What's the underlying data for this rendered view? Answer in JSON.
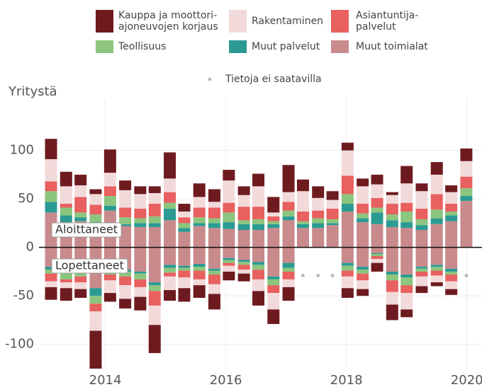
{
  "chart_data": {
    "type": "bar",
    "stacked": true,
    "y_label": "Yritystä",
    "stack_labels": [
      "Aloittaneet",
      "Lopettaneet"
    ],
    "missing_label": "Tietoja ei saatavilla",
    "missing_marker_value": -29,
    "xlim": [
      2012.9,
      2020.25
    ],
    "xticks": [
      2014,
      2016,
      2018,
      2020
    ],
    "ylim": [
      -125,
      153
    ],
    "yticks": [
      -100,
      -50,
      0,
      50,
      100
    ],
    "grid": true,
    "x": [
      2013.1,
      2013.35,
      2013.59,
      2013.84,
      2014.08,
      2014.33,
      2014.58,
      2014.82,
      2015.07,
      2015.31,
      2015.56,
      2015.81,
      2016.05,
      2016.3,
      2016.54,
      2016.79,
      2017.04,
      2017.28,
      2017.53,
      2017.77,
      2018.02,
      2018.27,
      2018.51,
      2018.76,
      2019.0,
      2019.25,
      2019.5,
      2019.74,
      2019.99
    ],
    "series": [
      {
        "name": "Muut toimialat",
        "color": "#c98a8c",
        "values": [
          36,
          26,
          27,
          22,
          38,
          22,
          21,
          21,
          28,
          16,
          22,
          20,
          19,
          18,
          18,
          20,
          28,
          20,
          20,
          23,
          37,
          26,
          24,
          21,
          20,
          18,
          24,
          27,
          48
        ],
        "values_below": [
          -20,
          -24,
          -22,
          -42,
          -22,
          -23,
          -25,
          -36,
          -18,
          -19,
          -17,
          -22,
          -11,
          -13,
          -15,
          -30,
          -16,
          null,
          null,
          null,
          -16,
          -20,
          -6,
          -25,
          -28,
          -20,
          -18,
          -22,
          null
        ]
      },
      {
        "name": "Muut palvelut",
        "color": "#2b9a93",
        "values": [
          11,
          7,
          4,
          4,
          5,
          2,
          4,
          4,
          12,
          4,
          3,
          5,
          7,
          6,
          6,
          4,
          4,
          4,
          5,
          2,
          8,
          4,
          12,
          7,
          6,
          5,
          6,
          6,
          5
        ],
        "values_below": [
          -3,
          -3,
          -3,
          -8,
          -3,
          -2,
          -2,
          -3,
          -3,
          -2,
          -3,
          -2,
          -2,
          -2,
          -3,
          -3,
          -5,
          null,
          null,
          null,
          -3,
          -3,
          -1,
          -3,
          -3,
          -2,
          -2,
          -3,
          null
        ]
      },
      {
        "name": "Teollisuus",
        "color": "#8cc57d",
        "values": [
          11,
          8,
          5,
          8,
          10,
          7,
          5,
          7,
          6,
          5,
          6,
          5,
          10,
          4,
          5,
          3,
          6,
          3,
          5,
          4,
          10,
          5,
          5,
          6,
          11,
          6,
          9,
          4,
          8
        ],
        "values_below": [
          -4,
          -6,
          -5,
          -8,
          -3,
          -5,
          -6,
          -6,
          -5,
          -3,
          -4,
          -4,
          -3,
          -3,
          -5,
          -6,
          -4,
          null,
          null,
          null,
          -5,
          -4,
          -2,
          -6,
          -8,
          -3,
          -4,
          -3,
          null
        ]
      },
      {
        "name": "Asiantuntija-\npalvelut",
        "color": "#e8605f",
        "values": [
          10,
          4,
          16,
          10,
          10,
          10,
          10,
          13,
          11,
          6,
          10,
          11,
          10,
          14,
          13,
          5,
          9,
          10,
          8,
          11,
          19,
          10,
          10,
          11,
          9,
          11,
          16,
          8,
          12
        ],
        "values_below": [
          -8,
          -3,
          -6,
          -8,
          -6,
          -9,
          -8,
          -15,
          -4,
          -7,
          -9,
          -10,
          -3,
          -5,
          -10,
          -8,
          -8,
          null,
          null,
          null,
          -6,
          -7,
          -3,
          -12,
          -8,
          -5,
          -5,
          -7,
          null
        ]
      },
      {
        "name": "Rakentaminen",
        "color": "#f2dadb",
        "values": [
          23,
          18,
          12,
          11,
          14,
          18,
          15,
          11,
          14,
          6,
          11,
          6,
          23,
          12,
          21,
          4,
          10,
          21,
          13,
          9,
          26,
          18,
          14,
          9,
          20,
          18,
          20,
          12,
          16
        ],
        "values_below": [
          -6,
          -6,
          -7,
          -20,
          -13,
          -14,
          -10,
          -20,
          -14,
          -11,
          -6,
          -10,
          -6,
          -4,
          -12,
          -17,
          -8,
          null,
          null,
          null,
          -12,
          -9,
          -4,
          -13,
          -17,
          -10,
          -7,
          -8,
          null
        ]
      },
      {
        "name": "Kauppa ja moottori-\najoneuvojen korjaus",
        "color": "#6e1b20",
        "values": [
          21,
          15,
          11,
          5,
          24,
          10,
          8,
          7,
          27,
          8,
          14,
          13,
          11,
          9,
          13,
          16,
          28,
          12,
          12,
          9,
          8,
          8,
          10,
          3,
          18,
          8,
          13,
          7,
          13
        ],
        "values_below": [
          -13,
          -13,
          -9,
          -46,
          -9,
          -10,
          -14,
          -29,
          -11,
          -14,
          -13,
          -16,
          -9,
          -8,
          -15,
          -15,
          -14,
          null,
          null,
          null,
          -10,
          -7,
          -9,
          -16,
          -8,
          -7,
          -4,
          -6,
          null
        ]
      }
    ]
  }
}
